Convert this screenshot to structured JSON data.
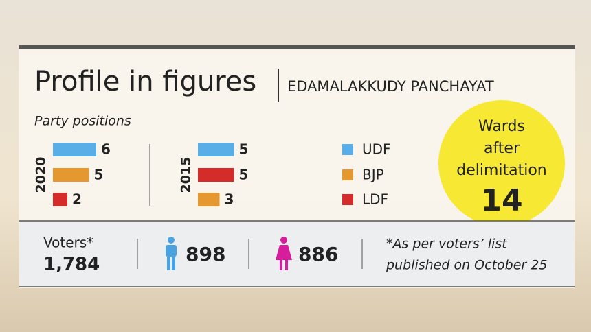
{
  "header": {
    "title": "Profile in figures",
    "subtitle": "EDAMALAKKUDY PANCHAYAT"
  },
  "section_label": "Party positions",
  "chart_data": [
    {
      "type": "bar",
      "title": "2020",
      "values": [
        6,
        5,
        2
      ],
      "colors": [
        "#5aaee8",
        "#e5982f",
        "#d42b2b"
      ],
      "xlim": [
        0,
        6
      ]
    },
    {
      "type": "bar",
      "title": "2015",
      "values": [
        5,
        5,
        3
      ],
      "colors": [
        "#5aaee8",
        "#d42b2b",
        "#e5982f"
      ],
      "xlim": [
        0,
        6
      ]
    }
  ],
  "legend": [
    {
      "name": "UDF",
      "color": "#5aaee8"
    },
    {
      "name": "BJP",
      "color": "#e5982f"
    },
    {
      "name": "LDF",
      "color": "#d42b2b"
    }
  ],
  "wards": {
    "label_lines": [
      "Wards",
      "after",
      "delimitation"
    ],
    "value": "14"
  },
  "voters": {
    "label": "Voters*",
    "total": "1,784",
    "male": "898",
    "female": "886",
    "note_lines": [
      "*As per voters’ list",
      "published on October 25"
    ]
  }
}
